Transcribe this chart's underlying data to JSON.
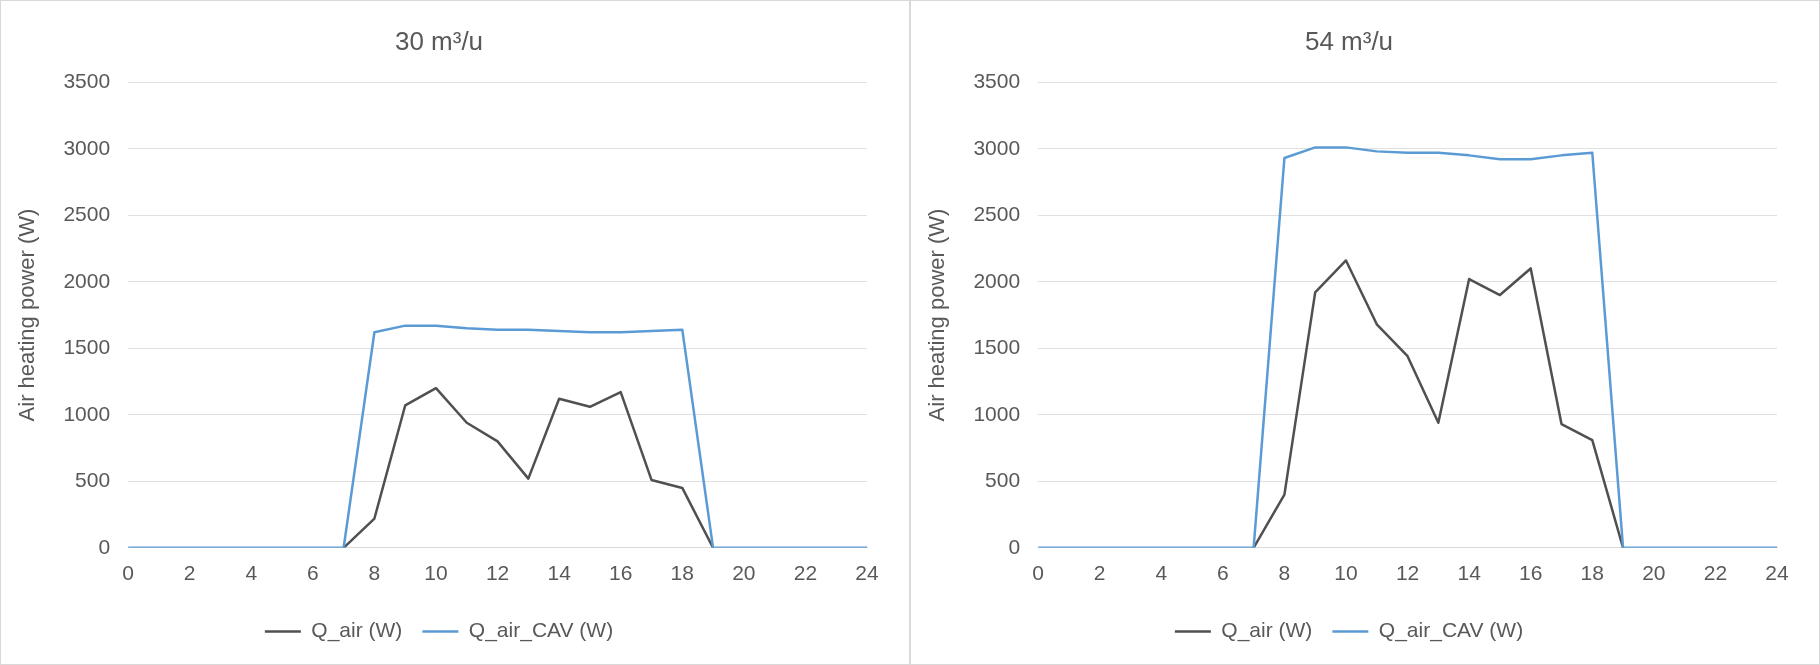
{
  "chart_data": [
    {
      "type": "line",
      "title": "30 m³/u",
      "ylabel": "Air heating power (W)",
      "x": [
        0,
        1,
        2,
        3,
        4,
        5,
        6,
        7,
        8,
        9,
        10,
        11,
        12,
        13,
        14,
        15,
        16,
        17,
        18,
        19,
        20,
        21,
        22,
        23,
        24
      ],
      "series": [
        {
          "name": "Q_air (W)",
          "color": "#505050",
          "values": [
            null,
            null,
            null,
            null,
            null,
            null,
            null,
            0,
            220,
            1070,
            1200,
            940,
            800,
            520,
            1120,
            1060,
            1170,
            510,
            450,
            0,
            null,
            null,
            null,
            null,
            null
          ]
        },
        {
          "name": "Q_air_CAV (W)",
          "color": "#5b9bd5",
          "values": [
            0,
            0,
            0,
            0,
            0,
            0,
            0,
            0,
            1620,
            1670,
            1670,
            1650,
            1640,
            1640,
            1630,
            1620,
            1620,
            1630,
            1640,
            0,
            0,
            0,
            0,
            0,
            0
          ]
        }
      ],
      "xlim": [
        0,
        24
      ],
      "xticks": [
        0,
        2,
        4,
        6,
        8,
        10,
        12,
        14,
        16,
        18,
        20,
        22,
        24
      ],
      "ylim": [
        0,
        3500
      ],
      "yticks": [
        0,
        500,
        1000,
        1500,
        2000,
        2500,
        3000,
        3500
      ],
      "grid": "y",
      "legend": "bottom",
      "marker": "none",
      "line_style": "solid"
    },
    {
      "type": "line",
      "title": "54 m³/u",
      "ylabel": "Air heating power (W)",
      "x": [
        0,
        1,
        2,
        3,
        4,
        5,
        6,
        7,
        8,
        9,
        10,
        11,
        12,
        13,
        14,
        15,
        16,
        17,
        18,
        19,
        20,
        21,
        22,
        23,
        24
      ],
      "series": [
        {
          "name": "Q_air (W)",
          "color": "#505050",
          "values": [
            null,
            null,
            null,
            null,
            null,
            null,
            null,
            0,
            400,
            1920,
            2160,
            1680,
            1440,
            940,
            2020,
            1900,
            2100,
            930,
            810,
            0,
            null,
            null,
            null,
            null,
            null
          ]
        },
        {
          "name": "Q_air_CAV (W)",
          "color": "#5b9bd5",
          "values": [
            0,
            0,
            0,
            0,
            0,
            0,
            0,
            0,
            2930,
            3010,
            3010,
            2980,
            2970,
            2970,
            2950,
            2920,
            2920,
            2950,
            2970,
            0,
            0,
            0,
            0,
            0,
            0
          ]
        }
      ],
      "xlim": [
        0,
        24
      ],
      "xticks": [
        0,
        2,
        4,
        6,
        8,
        10,
        12,
        14,
        16,
        18,
        20,
        22,
        24
      ],
      "ylim": [
        0,
        3500
      ],
      "yticks": [
        0,
        500,
        1000,
        1500,
        2000,
        2500,
        3000,
        3500
      ],
      "grid": "y",
      "legend": "bottom",
      "marker": "none",
      "line_style": "solid"
    }
  ]
}
